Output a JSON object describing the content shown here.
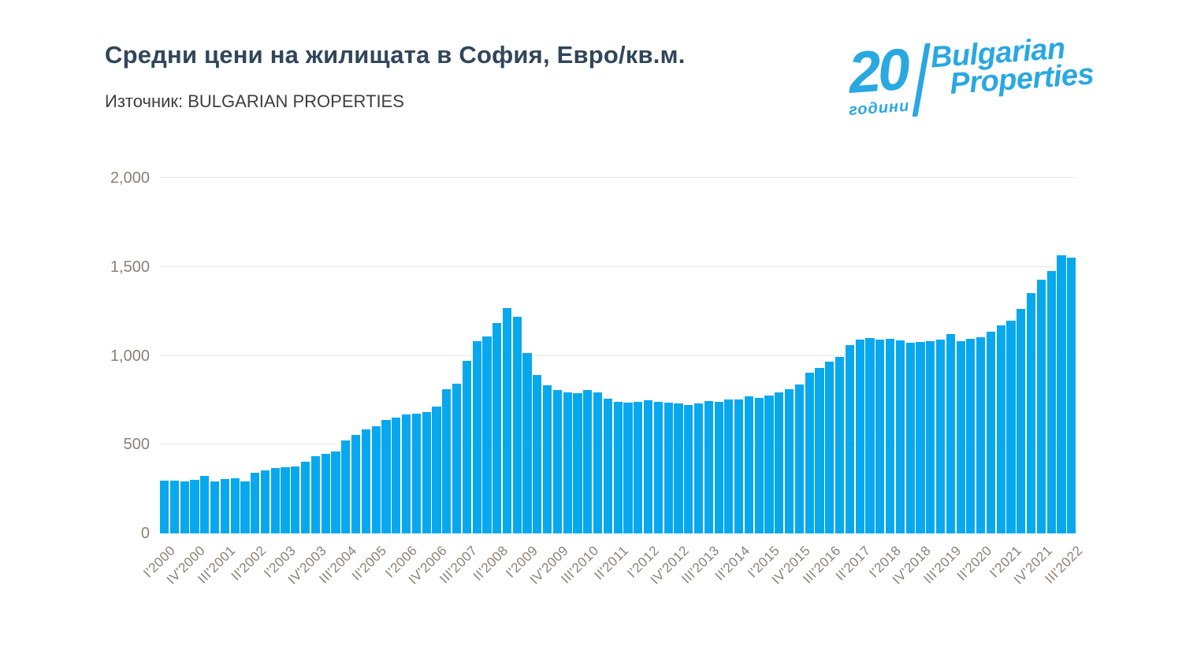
{
  "header": {
    "title": "Средни цени на жилищата в София, Евро/кв.м.",
    "source": "Източник: BULGARIAN PROPERTIES"
  },
  "logo": {
    "number": "20",
    "years_word": "години",
    "brand_line1": "Bulgarian",
    "brand_line2": "Properties"
  },
  "colors": {
    "bar": "#07a8ee",
    "title": "#31465a",
    "subtitle": "#3e3e3e",
    "axis_label": "#8b8178",
    "gridline": "#e9e9e6",
    "logo_blue": "#29a8e1"
  },
  "chart_data": {
    "type": "bar",
    "title": "Средни цени на жилищата в София, Евро/кв.м.",
    "xlabel": "",
    "ylabel": "",
    "ylim": [
      0,
      2000
    ],
    "y_ticks": [
      "0",
      "500",
      "1,000",
      "1,500",
      "2,000"
    ],
    "grid": "horizontal",
    "legend": "none",
    "tick_every": 3,
    "categories": [
      "I'2000",
      "II'2000",
      "III'2000",
      "IV'2000",
      "I'2001",
      "II'2001",
      "III'2001",
      "IV'2001",
      "I'2002",
      "II'2002",
      "III'2002",
      "IV'2002",
      "I'2003",
      "II'2003",
      "III'2003",
      "IV'2003",
      "I'2004",
      "II'2004",
      "III'2004",
      "IV'2004",
      "I'2005",
      "II'2005",
      "III'2005",
      "IV'2005",
      "I'2006",
      "II'2006",
      "III'2006",
      "IV'2006",
      "I'2007",
      "II'2007",
      "III'2007",
      "IV'2007",
      "I'2008",
      "II'2008",
      "III'2008",
      "IV'2008",
      "I'2009",
      "II'2009",
      "III'2009",
      "IV'2009",
      "I'2010",
      "II'2010",
      "III'2010",
      "IV'2010",
      "I'2011",
      "II'2011",
      "III'2011",
      "IV'2011",
      "I'2012",
      "II'2012",
      "III'2012",
      "IV'2012",
      "I'2013",
      "II'2013",
      "III'2013",
      "IV'2013",
      "I'2014",
      "II'2014",
      "III'2014",
      "IV'2014",
      "I'2015",
      "II'2015",
      "III'2015",
      "IV'2015",
      "I'2016",
      "II'2016",
      "III'2016",
      "IV'2016",
      "I'2017",
      "II'2017",
      "III'2017",
      "IV'2017",
      "I'2018",
      "II'2018",
      "III'2018",
      "IV'2018",
      "I'2019",
      "II'2019",
      "III'2019",
      "IV'2019",
      "I'2020",
      "II'2020",
      "III'2020",
      "IV'2020",
      "I'2021",
      "II'2021",
      "III'2021",
      "IV'2021",
      "I'2022",
      "II'2022",
      "III'2022"
    ],
    "values": [
      297,
      297,
      293,
      300,
      324,
      294,
      305,
      310,
      293,
      342,
      357,
      368,
      371,
      375,
      405,
      435,
      450,
      461,
      525,
      555,
      584,
      605,
      640,
      654,
      669,
      674,
      684,
      714,
      811,
      843,
      971,
      1083,
      1108,
      1186,
      1267,
      1220,
      1016,
      892,
      835,
      806,
      794,
      791,
      809,
      795,
      759,
      740,
      735,
      740,
      748,
      740,
      738,
      732,
      725,
      732,
      745,
      741,
      753,
      756,
      771,
      765,
      776,
      795,
      813,
      836,
      906,
      933,
      965,
      992,
      1062,
      1089,
      1098,
      1091,
      1094,
      1086,
      1075,
      1078,
      1081,
      1091,
      1124,
      1081,
      1096,
      1105,
      1135,
      1173,
      1196,
      1262,
      1352,
      1430,
      1478,
      1564,
      1552
    ]
  }
}
